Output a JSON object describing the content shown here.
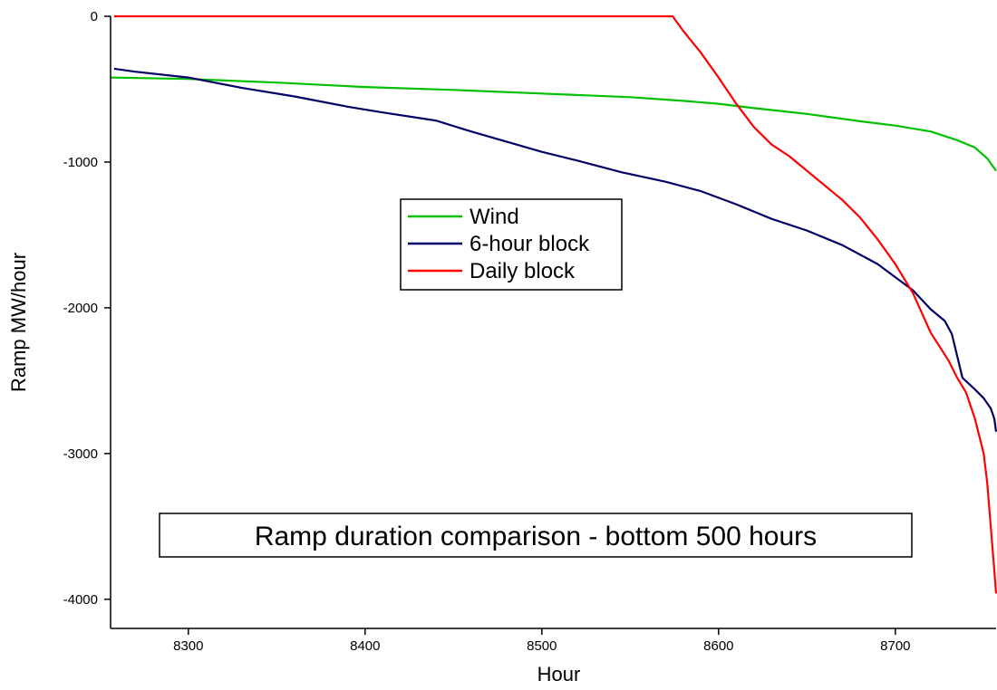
{
  "chart_data": {
    "type": "line",
    "title": "",
    "xlabel": "Hour",
    "ylabel": "Ramp MW/hour",
    "xlim": [
      8256,
      8757
    ],
    "ylim": [
      -4200,
      0
    ],
    "x_ticks": [
      8300,
      8400,
      8500,
      8600,
      8700
    ],
    "y_ticks": [
      0,
      -1000,
      -2000,
      -3000,
      -4000
    ],
    "grid": false,
    "legend_position": "center",
    "annotation": "Ramp duration comparison - bottom 500 hours",
    "series": [
      {
        "name": "Wind",
        "color": "#00c000",
        "x": [
          8256,
          8300,
          8350,
          8400,
          8450,
          8500,
          8550,
          8580,
          8600,
          8620,
          8650,
          8680,
          8700,
          8720,
          8735,
          8745,
          8752,
          8757
        ],
        "y": [
          -420,
          -430,
          -455,
          -485,
          -505,
          -530,
          -555,
          -580,
          -600,
          -630,
          -670,
          -720,
          -750,
          -790,
          -850,
          -900,
          -975,
          -1060
        ]
      },
      {
        "name": "6-hour block",
        "color": "#000066",
        "x": [
          8258,
          8270,
          8300,
          8330,
          8360,
          8390,
          8410,
          8440,
          8460,
          8480,
          8500,
          8520,
          8545,
          8570,
          8590,
          8610,
          8630,
          8650,
          8670,
          8690,
          8710,
          8720,
          8728,
          8732,
          8738,
          8745,
          8750,
          8754,
          8756,
          8757
        ],
        "y": [
          -360,
          -380,
          -420,
          -490,
          -550,
          -620,
          -660,
          -715,
          -790,
          -860,
          -930,
          -990,
          -1070,
          -1135,
          -1200,
          -1290,
          -1390,
          -1470,
          -1570,
          -1700,
          -1880,
          -2010,
          -2090,
          -2180,
          -2480,
          -2560,
          -2620,
          -2690,
          -2760,
          -2850
        ]
      },
      {
        "name": "Daily block",
        "color": "#ff0000",
        "x": [
          8258,
          8400,
          8500,
          8574,
          8580,
          8590,
          8600,
          8610,
          8620,
          8630,
          8640,
          8650,
          8660,
          8670,
          8680,
          8690,
          8700,
          8710,
          8720,
          8730,
          8735,
          8740,
          8745,
          8750,
          8752,
          8754,
          8756,
          8757
        ],
        "y": [
          0,
          0,
          0,
          0,
          -100,
          -250,
          -420,
          -600,
          -760,
          -880,
          -960,
          -1060,
          -1160,
          -1260,
          -1380,
          -1530,
          -1700,
          -1900,
          -2170,
          -2360,
          -2480,
          -2580,
          -2760,
          -3000,
          -3200,
          -3500,
          -3800,
          -3960
        ]
      }
    ]
  }
}
